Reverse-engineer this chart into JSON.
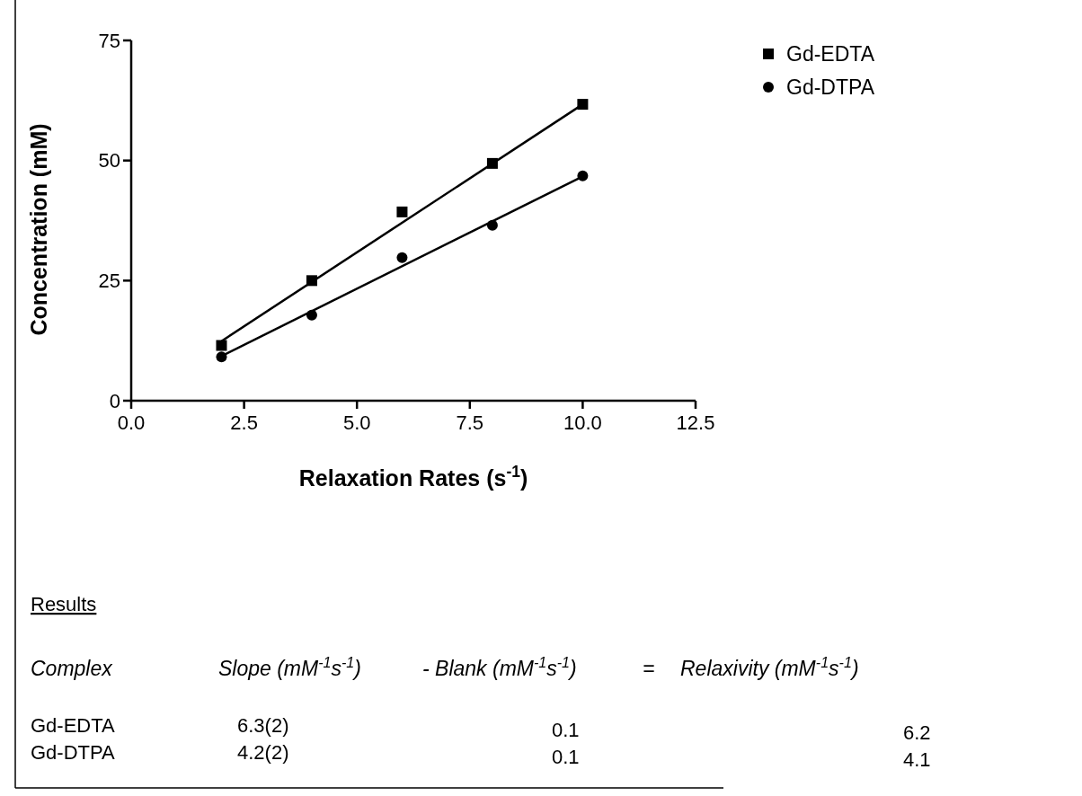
{
  "chart_data": {
    "type": "scatter",
    "xlabel": "Relaxation Rates (s$^{-1}$)",
    "ylabel": "Concentration (mM)",
    "xlim": [
      0,
      12.5
    ],
    "xticks": [
      {
        "value": 0,
        "label": "0.0"
      },
      2.5,
      {
        "value": 5,
        "label": "5.0"
      },
      7.5,
      {
        "value": 10,
        "label": "10.0"
      },
      12.5
    ],
    "ylim": [
      0,
      75
    ],
    "yticks": [
      0,
      25,
      50,
      75
    ],
    "grid": false,
    "legend": "top right",
    "series": [
      {
        "name": "Gd-EDTA",
        "color": "#000000",
        "marker": "square",
        "x": [
          2,
          4,
          6,
          8,
          10
        ],
        "values": [
          11.5,
          25.0,
          39.3,
          49.4,
          61.7
        ]
      },
      {
        "name": "Gd-DTPA",
        "color": "#000000",
        "marker": "circle",
        "x": [
          2,
          4,
          6,
          8,
          10
        ],
        "values": [
          9.1,
          17.8,
          29.8,
          36.5,
          46.8
        ]
      },
      {
        "type": "line",
        "color": "#000000",
        "marker": "none",
        "x": [
          2,
          10
        ],
        "values": [
          12.4,
          61.7
        ]
      },
      {
        "type": "line",
        "color": "#000000",
        "marker": "none",
        "x": [
          2,
          10
        ],
        "values": [
          9.3,
          46.7
        ]
      }
    ],
    "annotations": [
      "Results",
      "Complex",
      "Slope (mM$^{-1}$s$^{-1}$)",
      "- Blank (mM$^{-1}$s$^{-1}$)",
      "=",
      "Relaxivity (mM$^{-1}$s$^{-1}$)",
      "Gd-EDTA",
      "6.3(2)",
      "0.1",
      "6.2",
      "Gd-DTPA",
      "4.2(2)",
      "0.1",
      "4.1"
    ]
  }
}
